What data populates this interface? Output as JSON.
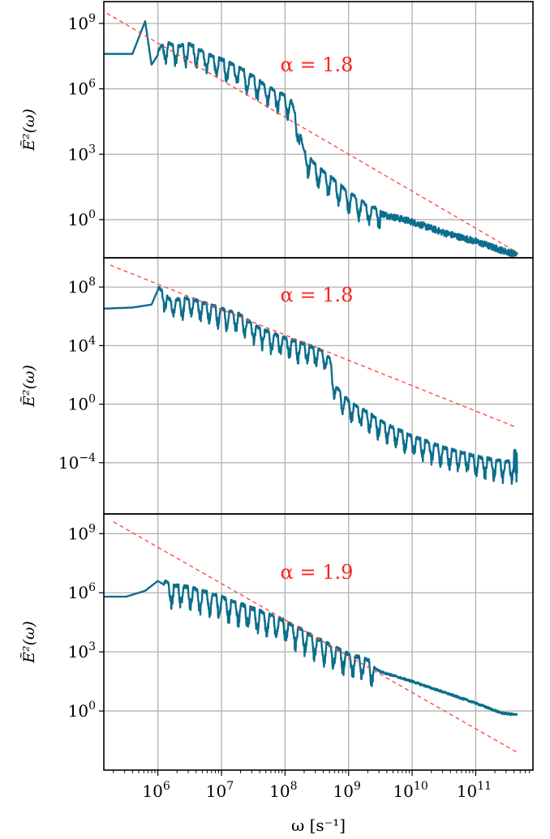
{
  "chart_data": {
    "type": "line",
    "xscale": "log",
    "yscale": "log",
    "x_log_range": [
      5.15,
      11.9
    ],
    "xlabel": "ω [s⁻¹]",
    "x_ticks": [
      {
        "base": "10",
        "exp": "6",
        "value": 6
      },
      {
        "base": "10",
        "exp": "7",
        "value": 7
      },
      {
        "base": "10",
        "exp": "8",
        "value": 8
      },
      {
        "base": "10",
        "exp": "9",
        "value": 9
      },
      {
        "base": "10",
        "exp": "10",
        "value": 10
      },
      {
        "base": "10",
        "exp": "11",
        "value": 11
      }
    ],
    "grid": true,
    "colors": {
      "series": "#0b6e8c",
      "fit": "#ff4a4a",
      "grid": "#b0b0b0",
      "annotation": "#ff2020"
    },
    "panels": [
      {
        "ylabel": "Ẽ²(ω)",
        "y_log_range": [
          -1.75,
          10.0
        ],
        "y_ticks": [
          {
            "base": "10",
            "exp": "9",
            "value": 9
          },
          {
            "base": "10",
            "exp": "6",
            "value": 6
          },
          {
            "base": "10",
            "exp": "3",
            "value": 3
          },
          {
            "base": "10",
            "exp": "0",
            "value": 0
          }
        ],
        "annotation": "α = 1.8",
        "annotation_pos": [
          8.5,
          6.8
        ],
        "fit_line": {
          "x": [
            5.0,
            11.65
          ],
          "y": [
            9.8,
            -1.5
          ]
        },
        "series": {
          "spine": [
            [
              5.0,
              7.6
            ],
            [
              5.6,
              7.6
            ],
            [
              5.8,
              9.1
            ],
            [
              5.9,
              7.1
            ],
            [
              6.1,
              8.0
            ],
            [
              6.3,
              7.8
            ],
            [
              6.5,
              7.9
            ],
            [
              6.8,
              7.4
            ],
            [
              7.0,
              7.2
            ],
            [
              7.3,
              6.8
            ],
            [
              7.5,
              6.4
            ],
            [
              7.7,
              6.0
            ],
            [
              7.9,
              5.7
            ],
            [
              8.0,
              5.55
            ],
            [
              8.1,
              5.3
            ],
            [
              8.2,
              4.3
            ],
            [
              8.3,
              3.0
            ],
            [
              8.5,
              2.3
            ],
            [
              8.8,
              1.6
            ],
            [
              9.0,
              1.1
            ],
            [
              9.3,
              0.5
            ],
            [
              9.6,
              0.2
            ],
            [
              10.0,
              -0.1
            ],
            [
              10.5,
              -0.6
            ],
            [
              11.0,
              -1.0
            ],
            [
              11.4,
              -1.4
            ],
            [
              11.65,
              -1.6
            ]
          ],
          "band_start": 6.0,
          "band_end": 9.5,
          "band_amp": 0.9,
          "band_period": 0.08,
          "tail_amp": 0.15
        }
      },
      {
        "ylabel": "Ẽ²(ω)",
        "y_log_range": [
          -7.5,
          10.0
        ],
        "y_ticks": [
          {
            "base": "10",
            "exp": "8",
            "value": 8
          },
          {
            "base": "10",
            "exp": "4",
            "value": 4
          },
          {
            "base": "10",
            "exp": "0",
            "value": 0
          },
          {
            "base": "10",
            "exp": "−4",
            "value": -4
          }
        ],
        "annotation": "α = 1.8",
        "annotation_pos": [
          8.5,
          7.0
        ],
        "fit_line": {
          "x": [
            5.25,
            11.65
          ],
          "y": [
            9.5,
            -1.6
          ]
        },
        "series": {
          "spine": [
            [
              5.0,
              6.5
            ],
            [
              5.6,
              6.6
            ],
            [
              5.9,
              6.8
            ],
            [
              6.0,
              7.8
            ],
            [
              6.2,
              6.9
            ],
            [
              6.5,
              7.0
            ],
            [
              6.8,
              6.6
            ],
            [
              7.0,
              6.3
            ],
            [
              7.3,
              5.9
            ],
            [
              7.5,
              5.2
            ],
            [
              7.8,
              4.6
            ],
            [
              8.0,
              4.3
            ],
            [
              8.3,
              3.9
            ],
            [
              8.6,
              3.4
            ],
            [
              8.7,
              2.9
            ],
            [
              8.8,
              1.0
            ],
            [
              9.0,
              0.0
            ],
            [
              9.3,
              -0.8
            ],
            [
              9.6,
              -1.6
            ],
            [
              10.0,
              -2.4
            ],
            [
              10.5,
              -3.2
            ],
            [
              11.0,
              -3.8
            ],
            [
              11.4,
              -4.1
            ],
            [
              11.65,
              -4.2
            ]
          ],
          "band_start": 6.0,
          "band_end": 11.6,
          "band_amp": 1.3,
          "band_period": 0.07,
          "tail_amp": 1.1
        }
      },
      {
        "ylabel": "Ẽ²(ω)",
        "y_log_range": [
          -3.0,
          10.0
        ],
        "y_ticks": [
          {
            "base": "10",
            "exp": "9",
            "value": 9
          },
          {
            "base": "10",
            "exp": "6",
            "value": 6
          },
          {
            "base": "10",
            "exp": "3",
            "value": 3
          },
          {
            "base": "10",
            "exp": "0",
            "value": 0
          }
        ],
        "annotation": "α = 1.9",
        "annotation_pos": [
          8.5,
          6.7
        ],
        "fit_line": {
          "x": [
            5.3,
            11.65
          ],
          "y": [
            9.6,
            -2.1
          ]
        },
        "series": {
          "spine": [
            [
              5.0,
              5.8
            ],
            [
              5.5,
              5.8
            ],
            [
              5.8,
              6.1
            ],
            [
              6.0,
              6.6
            ],
            [
              6.2,
              6.2
            ],
            [
              6.5,
              6.1
            ],
            [
              7.0,
              5.6
            ],
            [
              7.5,
              5.0
            ],
            [
              8.0,
              4.4
            ],
            [
              8.5,
              3.5
            ],
            [
              9.0,
              2.7
            ],
            [
              9.3,
              2.4
            ],
            [
              9.5,
              2.0
            ],
            [
              10.0,
              1.5
            ],
            [
              10.5,
              0.95
            ],
            [
              11.0,
              0.4
            ],
            [
              11.4,
              -0.1
            ],
            [
              11.65,
              -0.2
            ]
          ],
          "band_start": 6.1,
          "band_end": 9.4,
          "band_amp": 1.1,
          "band_period": 0.075,
          "tail_amp": 0.05
        }
      }
    ]
  }
}
